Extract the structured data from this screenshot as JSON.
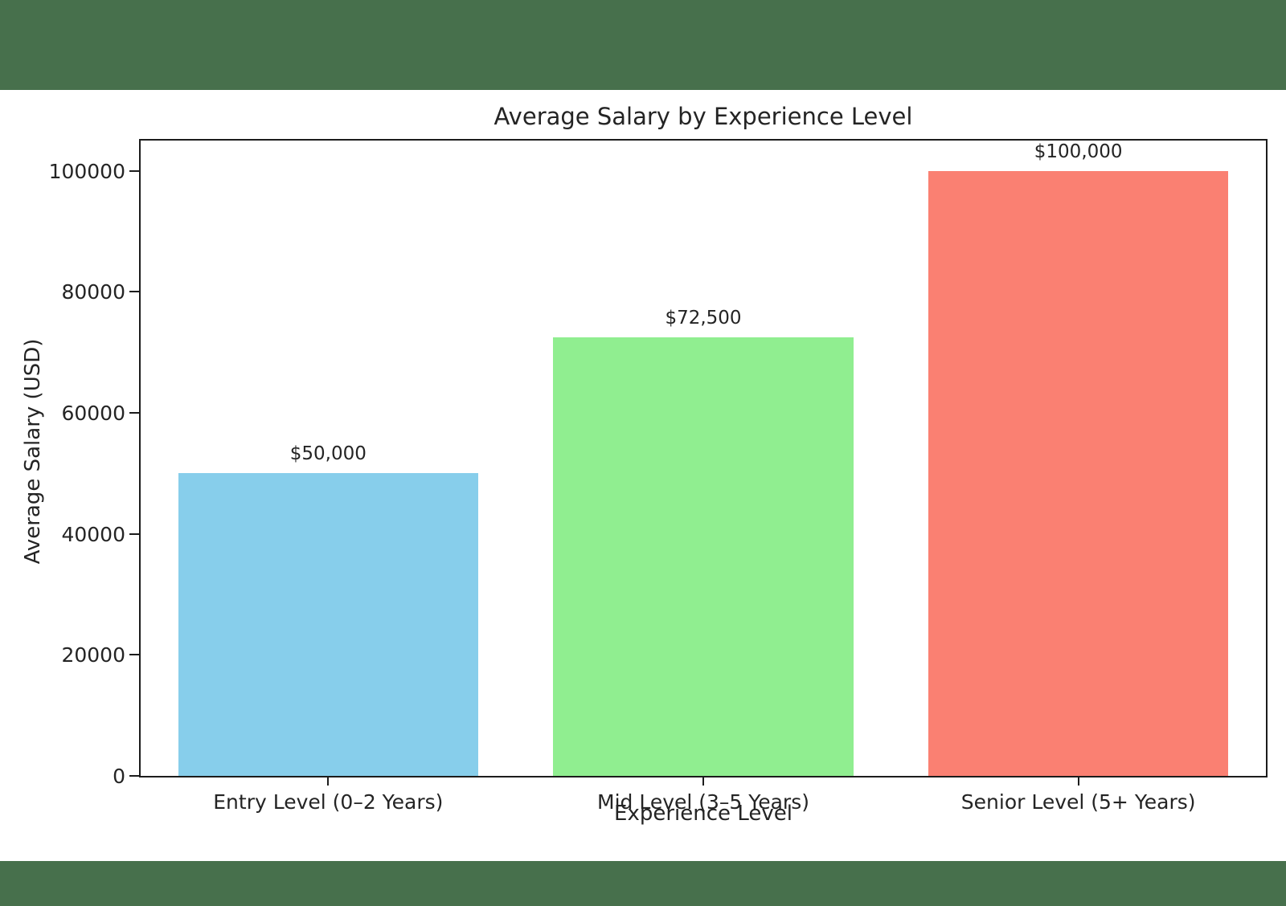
{
  "colors": {
    "page_background": "#47704C",
    "figure_background": "#ffffff",
    "text": "#242424",
    "spine": "#1c1c1c"
  },
  "chart_data": {
    "type": "bar",
    "title": "Average Salary by Experience Level",
    "xlabel": "Experience Level",
    "ylabel": "Average Salary (USD)",
    "categories": [
      "Entry Level (0–2 Years)",
      "Mid Level (3–5 Years)",
      "Senior Level (5+ Years)"
    ],
    "values": [
      50000,
      72500,
      100000
    ],
    "bar_value_labels": [
      "$50,000",
      "$72,500",
      "$100,000"
    ],
    "bar_colors": [
      "#87CEEB",
      "#90EE90",
      "#FA8072"
    ],
    "yticks": [
      0,
      20000,
      40000,
      60000,
      80000,
      100000
    ],
    "ytick_labels": [
      "0",
      "20000",
      "40000",
      "60000",
      "80000",
      "100000"
    ],
    "ylim": [
      0,
      105000
    ],
    "grid": false,
    "legend": "none",
    "bar_width_fraction": 0.8
  }
}
